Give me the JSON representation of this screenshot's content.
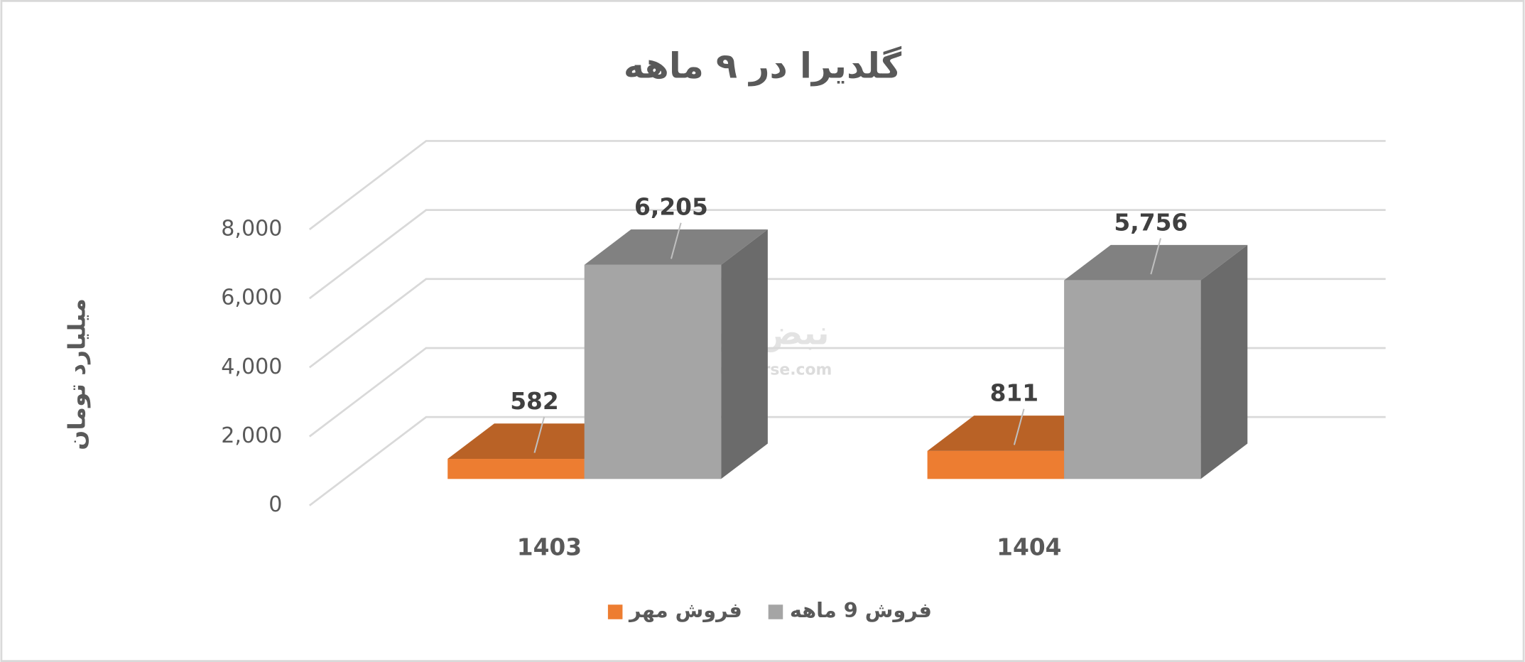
{
  "chart_data": {
    "type": "bar3d",
    "title": "گلدیرا در ۹ ماهه",
    "y_label": "میلیارد تومان",
    "watermark_logo": "نبض بورس",
    "watermark": "nabzebourse.com",
    "categories": [
      "1403",
      "1404"
    ],
    "series": [
      {
        "name": "فروش مهر",
        "color": "#ed7d31",
        "values": [
          582,
          811
        ],
        "value_labels": [
          "582",
          "811"
        ]
      },
      {
        "name": "فروش 9 ماهه",
        "color": "#a5a5a5",
        "values": [
          6205,
          5756
        ],
        "value_labels": [
          "6,205",
          "5,756"
        ]
      }
    ],
    "ylim": [
      0,
      8000
    ],
    "yticks": [
      0,
      {
        "value": 2000,
        "label": "2,000"
      },
      {
        "value": 4000,
        "label": "4,000"
      },
      {
        "value": 6000,
        "label": "6,000"
      },
      {
        "value": 8000,
        "label": "8,000"
      }
    ],
    "grid": true
  }
}
